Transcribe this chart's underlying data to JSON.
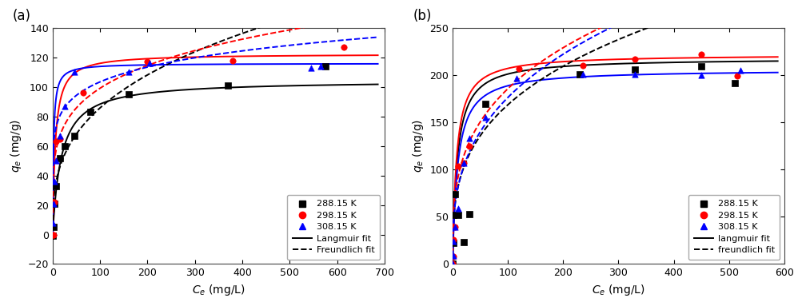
{
  "panel_a": {
    "title": "(a)",
    "xlabel": "C_e (mg/L)",
    "ylabel": "q_e (mg/g)",
    "xlim": [
      0,
      700
    ],
    "ylim": [
      -20,
      140
    ],
    "xticks": [
      0,
      100,
      200,
      300,
      400,
      500,
      600,
      700
    ],
    "yticks": [
      -20,
      0,
      20,
      40,
      60,
      80,
      100,
      120,
      140
    ],
    "data_288": {
      "Ce": [
        1,
        2,
        4,
        7,
        15,
        25,
        45,
        80,
        160,
        370,
        575
      ],
      "qe": [
        -1,
        5,
        21,
        33,
        52,
        60,
        67,
        83,
        95,
        101,
        114
      ],
      "color": "#000000",
      "marker": "s"
    },
    "data_298": {
      "Ce": [
        1,
        2,
        4,
        7,
        15,
        65,
        200,
        380,
        615
      ],
      "qe": [
        0,
        0,
        22,
        63,
        65,
        96,
        117,
        118,
        127
      ],
      "color": "#FF0000",
      "marker": "o"
    },
    "data_308": {
      "Ce": [
        1,
        2,
        4,
        7,
        15,
        25,
        45,
        160,
        205,
        545,
        565
      ],
      "qe": [
        8,
        21,
        36,
        50,
        67,
        87,
        110,
        110,
        116,
        113,
        114
      ],
      "color": "#0000FF",
      "marker": "^"
    },
    "langmuir_288": {
      "qmax": 104.5,
      "KL": 0.055,
      "color": "#000000"
    },
    "langmuir_298": {
      "qmax": 122.5,
      "KL": 0.18,
      "color": "#FF0000"
    },
    "langmuir_308": {
      "qmax": 116.0,
      "KL": 0.55,
      "color": "#0000FF"
    },
    "freundlich_288": {
      "KF": 18.5,
      "n": 3.0,
      "color": "#000000"
    },
    "freundlich_298": {
      "KF": 38.0,
      "n": 4.8,
      "color": "#FF0000"
    },
    "freundlich_308": {
      "KF": 56.0,
      "n": 7.5,
      "color": "#0000FF"
    },
    "legend_entries": [
      "288.15 K",
      "298.15 K",
      "308.15 K",
      "Langmuir fit",
      "Freundlich fit"
    ]
  },
  "panel_b": {
    "title": "(b)",
    "xlabel": "C_e (mg/L)",
    "ylabel": "q_e (mg/g)",
    "xlim": [
      0,
      600
    ],
    "ylim": [
      0,
      250
    ],
    "xticks": [
      0,
      100,
      200,
      300,
      400,
      500,
      600
    ],
    "yticks": [
      0,
      50,
      100,
      150,
      200,
      250
    ],
    "data_288": {
      "Ce": [
        0.3,
        1,
        2,
        5,
        10,
        20,
        30,
        60,
        230,
        330,
        450,
        510
      ],
      "qe": [
        0,
        22,
        52,
        74,
        52,
        23,
        53,
        170,
        201,
        206,
        209,
        192
      ],
      "color": "#000000",
      "marker": "s"
    },
    "data_298": {
      "Ce": [
        0.3,
        1,
        2,
        5,
        10,
        20,
        30,
        120,
        235,
        330,
        450,
        515
      ],
      "qe": [
        0,
        8,
        26,
        39,
        104,
        107,
        125,
        207,
        210,
        217,
        222,
        199
      ],
      "color": "#FF0000",
      "marker": "o"
    },
    "data_308": {
      "Ce": [
        0.3,
        1,
        2,
        5,
        10,
        20,
        30,
        60,
        115,
        235,
        330,
        450,
        520
      ],
      "qe": [
        0,
        9,
        24,
        39,
        59,
        107,
        133,
        155,
        197,
        201,
        201,
        200,
        205
      ],
      "color": "#0000FF",
      "marker": "^"
    },
    "langmuir_288": {
      "qmax": 218.0,
      "KL": 0.12,
      "color": "#000000"
    },
    "langmuir_298": {
      "qmax": 222.0,
      "KL": 0.14,
      "color": "#FF0000"
    },
    "langmuir_308": {
      "qmax": 206.0,
      "KL": 0.11,
      "color": "#0000FF"
    },
    "freundlich_288": {
      "KF": 40.0,
      "n": 3.2,
      "color": "#000000"
    },
    "freundlich_298": {
      "KF": 46.0,
      "n": 3.3,
      "color": "#FF0000"
    },
    "freundlich_308": {
      "KF": 38.0,
      "n": 3.0,
      "color": "#0000FF"
    },
    "legend_entries": [
      "288.15 K",
      "298.15 K",
      "308.15 K",
      "langmuir fit",
      "freundlich fit"
    ]
  }
}
